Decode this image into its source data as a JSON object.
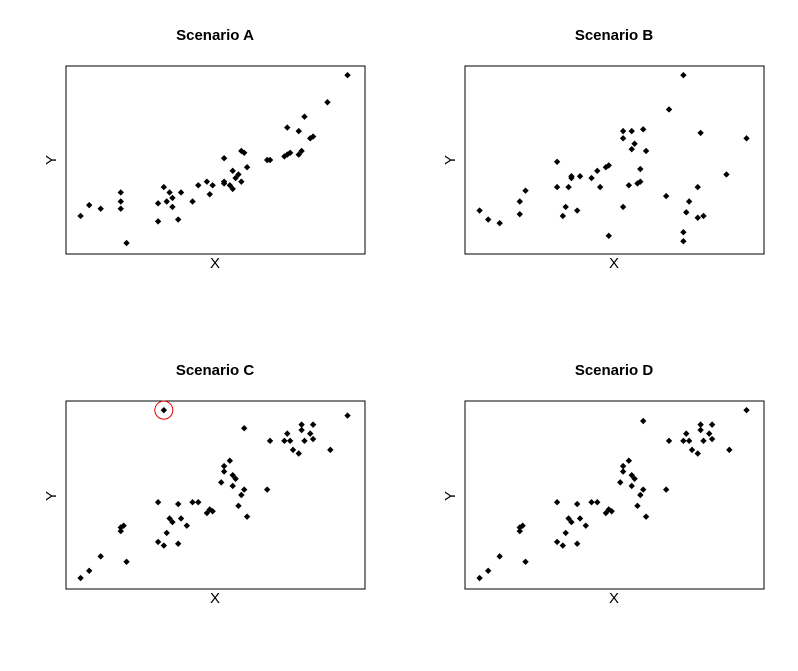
{
  "chart_data": [
    {
      "type": "scatter",
      "title": "Scenario A",
      "xlabel": "X",
      "ylabel": "Y",
      "xlim": [
        0,
        100
      ],
      "ylim": [
        0,
        100
      ],
      "x_ticks_shown": false,
      "y_ticks_shown": false,
      "points": [
        [
          3,
          19
        ],
        [
          6,
          25
        ],
        [
          10,
          23
        ],
        [
          17,
          23
        ],
        [
          17,
          27
        ],
        [
          17,
          32
        ],
        [
          19,
          4
        ],
        [
          30,
          16
        ],
        [
          30,
          26
        ],
        [
          32,
          35
        ],
        [
          33,
          27
        ],
        [
          34,
          32
        ],
        [
          35,
          24
        ],
        [
          35,
          29
        ],
        [
          37,
          17
        ],
        [
          38,
          32
        ],
        [
          42,
          27
        ],
        [
          44,
          36
        ],
        [
          47,
          38
        ],
        [
          48,
          31
        ],
        [
          49,
          36
        ],
        [
          53,
          37
        ],
        [
          53,
          51
        ],
        [
          53,
          38
        ],
        [
          55,
          36
        ],
        [
          56,
          44
        ],
        [
          56,
          34
        ],
        [
          57,
          40
        ],
        [
          58,
          42
        ],
        [
          59,
          38
        ],
        [
          59,
          55
        ],
        [
          60,
          54
        ],
        [
          61,
          46
        ],
        [
          68,
          50
        ],
        [
          69,
          50
        ],
        [
          74,
          52
        ],
        [
          75,
          53
        ],
        [
          75,
          68
        ],
        [
          76,
          54
        ],
        [
          79,
          53
        ],
        [
          80,
          55
        ],
        [
          79,
          66
        ],
        [
          81,
          74
        ],
        [
          83,
          62
        ],
        [
          84,
          63
        ],
        [
          89,
          82
        ],
        [
          96,
          97
        ]
      ]
    },
    {
      "type": "scatter",
      "title": "Scenario B",
      "xlabel": "X",
      "ylabel": "Y",
      "xlim": [
        0,
        100
      ],
      "ylim": [
        0,
        100
      ],
      "x_ticks_shown": false,
      "y_ticks_shown": false,
      "points": [
        [
          3,
          22
        ],
        [
          6,
          17
        ],
        [
          10,
          15
        ],
        [
          17,
          20
        ],
        [
          17,
          27
        ],
        [
          19,
          33
        ],
        [
          30,
          35
        ],
        [
          30,
          49
        ],
        [
          32,
          19
        ],
        [
          33,
          24
        ],
        [
          34,
          35
        ],
        [
          35,
          40
        ],
        [
          35,
          41
        ],
        [
          37,
          22
        ],
        [
          38,
          41
        ],
        [
          42,
          40
        ],
        [
          44,
          44
        ],
        [
          45,
          35
        ],
        [
          47,
          46
        ],
        [
          48,
          8
        ],
        [
          48,
          47
        ],
        [
          53,
          24
        ],
        [
          53,
          62
        ],
        [
          53,
          66
        ],
        [
          55,
          36
        ],
        [
          56,
          66
        ],
        [
          56,
          56
        ],
        [
          57,
          59
        ],
        [
          58,
          37
        ],
        [
          59,
          45
        ],
        [
          59,
          38
        ],
        [
          60,
          67
        ],
        [
          61,
          55
        ],
        [
          68,
          30
        ],
        [
          69,
          78
        ],
        [
          74,
          5
        ],
        [
          74,
          10
        ],
        [
          74,
          97
        ],
        [
          75,
          21
        ],
        [
          76,
          27
        ],
        [
          79,
          18
        ],
        [
          79,
          35
        ],
        [
          80,
          65
        ],
        [
          81,
          19
        ],
        [
          89,
          42
        ],
        [
          96,
          62
        ]
      ]
    },
    {
      "type": "scatter",
      "title": "Scenario C",
      "xlabel": "X",
      "ylabel": "Y",
      "xlim": [
        0,
        100
      ],
      "ylim": [
        0,
        100
      ],
      "x_ticks_shown": false,
      "y_ticks_shown": false,
      "highlighted_outlier": [
        32,
        97
      ],
      "points": [
        [
          3,
          4
        ],
        [
          6,
          8
        ],
        [
          10,
          16
        ],
        [
          17,
          30
        ],
        [
          17,
          32
        ],
        [
          18,
          33
        ],
        [
          19,
          13
        ],
        [
          30,
          24
        ],
        [
          30,
          46
        ],
        [
          32,
          22
        ],
        [
          32,
          97
        ],
        [
          33,
          29
        ],
        [
          34,
          37
        ],
        [
          35,
          35
        ],
        [
          37,
          23
        ],
        [
          37,
          45
        ],
        [
          38,
          37
        ],
        [
          40,
          33
        ],
        [
          42,
          46
        ],
        [
          44,
          46
        ],
        [
          47,
          40
        ],
        [
          48,
          42
        ],
        [
          49,
          41
        ],
        [
          52,
          57
        ],
        [
          53,
          66
        ],
        [
          53,
          63
        ],
        [
          55,
          69
        ],
        [
          56,
          55
        ],
        [
          56,
          61
        ],
        [
          57,
          59
        ],
        [
          58,
          44
        ],
        [
          59,
          50
        ],
        [
          60,
          53
        ],
        [
          60,
          87
        ],
        [
          61,
          38
        ],
        [
          68,
          53
        ],
        [
          69,
          80
        ],
        [
          74,
          80
        ],
        [
          75,
          84
        ],
        [
          76,
          80
        ],
        [
          77,
          75
        ],
        [
          79,
          73
        ],
        [
          80,
          86
        ],
        [
          80,
          89
        ],
        [
          81,
          80
        ],
        [
          83,
          84
        ],
        [
          84,
          81
        ],
        [
          84,
          89
        ],
        [
          90,
          75
        ],
        [
          96,
          94
        ]
      ]
    },
    {
      "type": "scatter",
      "title": "Scenario D",
      "xlabel": "X",
      "ylabel": "Y",
      "xlim": [
        0,
        100
      ],
      "ylim": [
        0,
        100
      ],
      "x_ticks_shown": false,
      "y_ticks_shown": false,
      "points": [
        [
          3,
          4
        ],
        [
          6,
          8
        ],
        [
          10,
          16
        ],
        [
          17,
          30
        ],
        [
          17,
          32
        ],
        [
          18,
          33
        ],
        [
          19,
          13
        ],
        [
          30,
          24
        ],
        [
          30,
          46
        ],
        [
          32,
          22
        ],
        [
          33,
          29
        ],
        [
          34,
          37
        ],
        [
          35,
          35
        ],
        [
          37,
          23
        ],
        [
          37,
          45
        ],
        [
          38,
          37
        ],
        [
          40,
          33
        ],
        [
          42,
          46
        ],
        [
          44,
          46
        ],
        [
          47,
          40
        ],
        [
          48,
          42
        ],
        [
          49,
          41
        ],
        [
          52,
          57
        ],
        [
          53,
          66
        ],
        [
          53,
          63
        ],
        [
          55,
          69
        ],
        [
          56,
          55
        ],
        [
          56,
          61
        ],
        [
          57,
          59
        ],
        [
          58,
          44
        ],
        [
          59,
          50
        ],
        [
          60,
          53
        ],
        [
          60,
          91
        ],
        [
          61,
          38
        ],
        [
          68,
          53
        ],
        [
          69,
          80
        ],
        [
          74,
          80
        ],
        [
          75,
          84
        ],
        [
          76,
          80
        ],
        [
          77,
          75
        ],
        [
          79,
          73
        ],
        [
          80,
          86
        ],
        [
          80,
          89
        ],
        [
          81,
          80
        ],
        [
          83,
          84
        ],
        [
          84,
          81
        ],
        [
          84,
          89
        ],
        [
          90,
          75
        ],
        [
          96,
          97
        ]
      ]
    }
  ]
}
